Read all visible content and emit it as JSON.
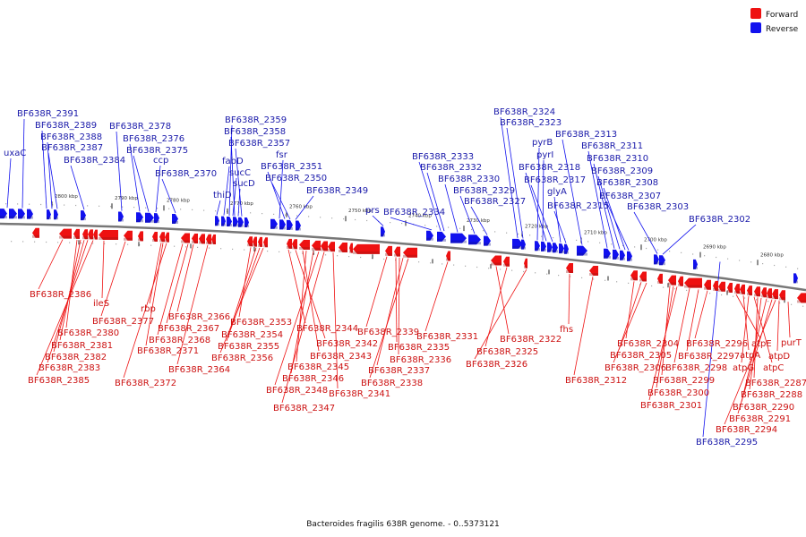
{
  "colors": {
    "forward": "#ee1111",
    "reverse": "#1111ee",
    "forward_label": "#cc1111",
    "reverse_label": "#1a1aaa",
    "backbone": "#777777"
  },
  "legend": {
    "forward_label": "Forward",
    "reverse_label": "Reverse"
  },
  "caption": "Bacteroides fragilis 638R genome. - 0..5373121",
  "ticks": [
    "2800 kbp",
    "2790 kbp",
    "2780 kbp",
    "2770 kbp",
    "2760 kbp",
    "2750 kbp",
    "2740 kbp",
    "2730 kbp",
    "2720 kbp",
    "2710 kbp",
    "2700 kbp",
    "2690 kbp",
    "2680 kbp"
  ],
  "reverse_genes": [
    "uxaC",
    "BF638R_2391",
    "BF638R_2389",
    "BF638R_2388",
    "BF638R_2387",
    "BF638R_2384",
    "BF638R_2378",
    "BF638R_2376",
    "BF638R_2375",
    "ccp",
    "BF638R_2370",
    "thiD",
    "fabD",
    "sucC",
    "sucD",
    "BF638R_2359",
    "BF638R_2358",
    "BF638R_2357",
    "fsr",
    "BF638R_2351",
    "BF638R_2350",
    "BF638R_2349",
    "prs",
    "BF638R_2334",
    "BF638R_2333",
    "BF638R_2332",
    "BF638R_2330",
    "BF638R_2329",
    "BF638R_2327",
    "BF638R_2324",
    "BF638R_2323",
    "pyrB",
    "pyrI",
    "BF638R_2318",
    "BF638R_2317",
    "glyA",
    "BF638R_2315",
    "BF638R_2313",
    "BF638R_2311",
    "BF638R_2310",
    "BF638R_2309",
    "BF638R_2308",
    "BF638R_2307",
    "BF638R_2303",
    "BF638R_2302",
    "BF638R_2295"
  ],
  "forward_genes": [
    "BF638R_2386",
    "ileS",
    "BF638R_2380",
    "BF638R_2381",
    "BF638R_2382",
    "BF638R_2383",
    "BF638R_2385",
    "BF638R_2377",
    "rbp",
    "BF638R_2371",
    "BF638R_2372",
    "BF638R_2368",
    "BF638R_2367",
    "BF638R_2366",
    "BF638R_2364",
    "BF638R_2353",
    "BF638R_2354",
    "BF638R_2355",
    "BF638R_2356",
    "BF638R_2344",
    "BF638R_2342",
    "BF638R_2343",
    "BF638R_2345",
    "BF638R_2346",
    "BF638R_2348",
    "BF638R_2347",
    "BF638R_2341",
    "BF638R_2339",
    "BF638R_2335",
    "BF638R_2336",
    "BF638R_2337",
    "BF638R_2338",
    "BF638R_2331",
    "BF638R_2322",
    "BF638R_2325",
    "BF638R_2326",
    "fhs",
    "BF638R_2312",
    "BF638R_2304",
    "BF638R_2305",
    "BF638R_2306",
    "BF638R_2299",
    "BF638R_2300",
    "BF638R_2301",
    "BF638R_2298",
    "BF638R_2297",
    "BF638R_2296",
    "atpE",
    "atpA",
    "atpG",
    "atpC",
    "BF638R_2287",
    "BF638R_2288",
    "BF638R_2290",
    "BF638R_2291",
    "BF638R_2294",
    "purT",
    "atpD"
  ]
}
